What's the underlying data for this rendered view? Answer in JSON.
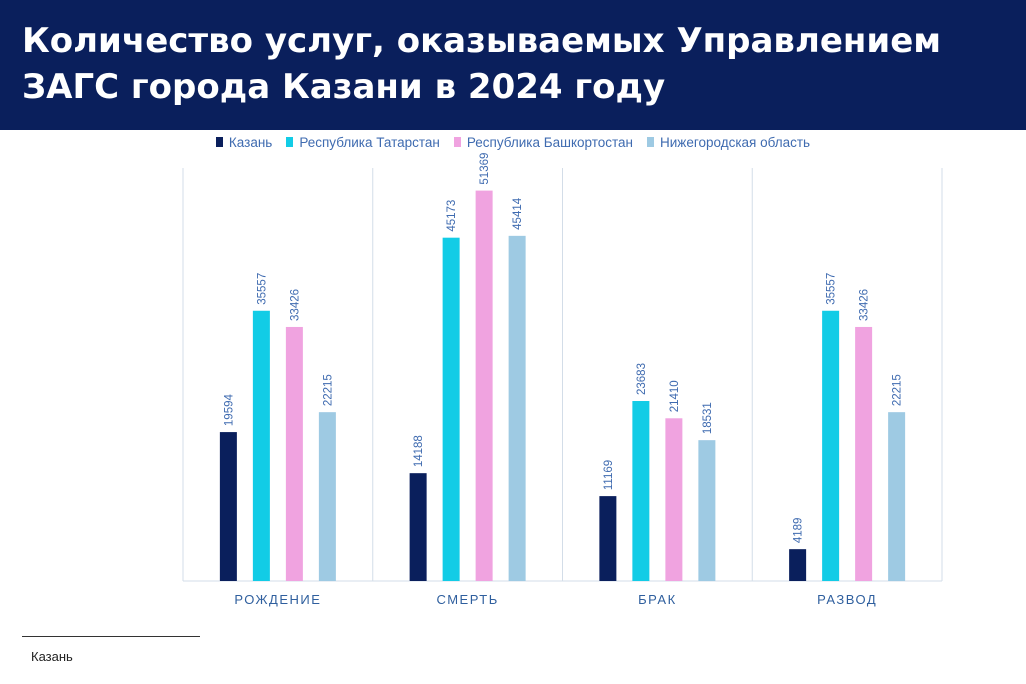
{
  "header": {
    "title": "Количество услуг, оказываемых Управлением ЗАГС города Казани в 2024 году"
  },
  "footer": {
    "note": "Казань"
  },
  "colors": {
    "header_bg": "#0a1f5c",
    "grid": "#d3dde8",
    "value_label": "#3f6bb0",
    "category_label": "#2f5f9e"
  },
  "chart_data": {
    "type": "bar",
    "title": "Количество услуг, оказываемых Управлением ЗАГС города Казани в 2024 году",
    "categories": [
      "РОЖДЕНИЕ",
      "СМЕРТЬ",
      "БРАК",
      "РАЗВОД"
    ],
    "series": [
      {
        "name": "Казань",
        "color": "#0a1f5c",
        "values": [
          19594,
          14188,
          11169,
          4189
        ]
      },
      {
        "name": "Республика Татарстан",
        "color": "#12cce6",
        "values": [
          35557,
          45173,
          23683,
          35557
        ]
      },
      {
        "name": "Республика Башкортостан",
        "color": "#f0a3e0",
        "values": [
          33426,
          51369,
          21410,
          33426
        ]
      },
      {
        "name": "Нижегородская область",
        "color": "#9ecae3",
        "values": [
          22215,
          45414,
          18531,
          22215
        ]
      }
    ],
    "ylim": [
      0,
      60000
    ],
    "legend": "top-center",
    "grid": "vertical separators"
  }
}
